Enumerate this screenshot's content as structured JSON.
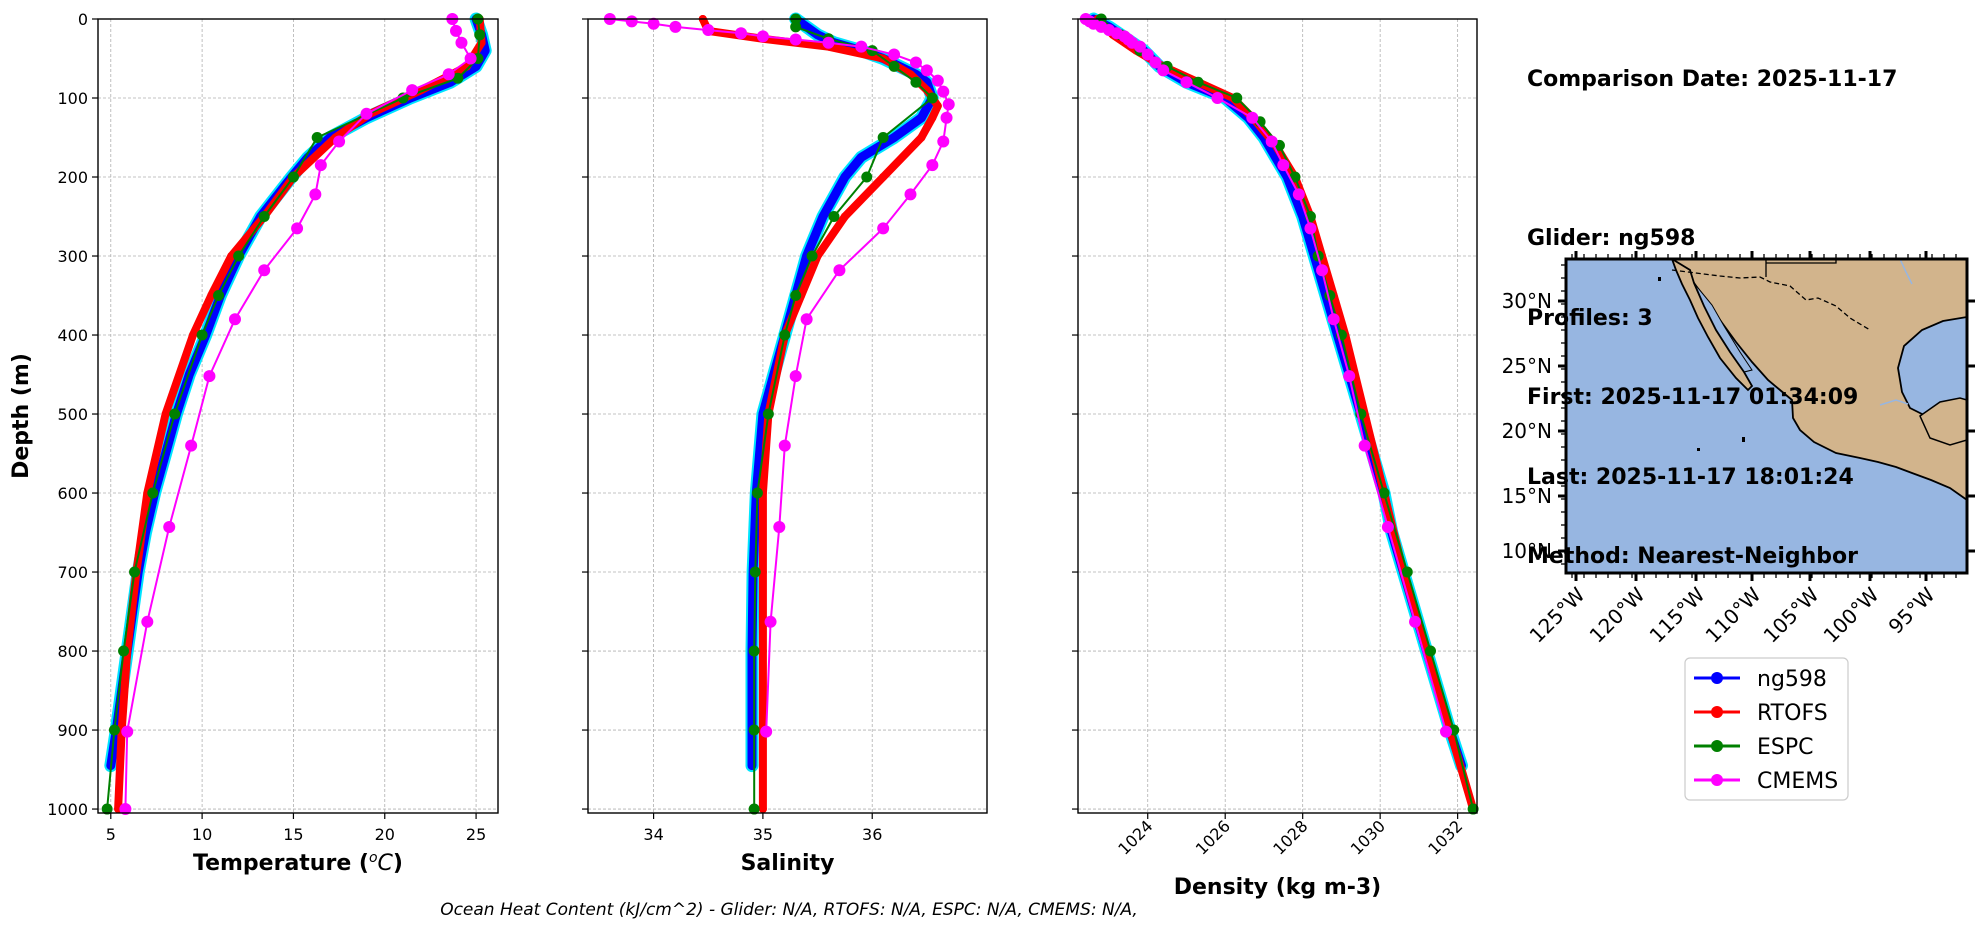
{
  "info": {
    "lines": [
      "Comparison Date: 2025-11-17",
      "",
      "Glider: ng598",
      "Profiles: 3",
      "First: 2025-11-17 01:34:09",
      "Last: 2025-11-17 18:01:24",
      "Method: Nearest-Neighbor"
    ]
  },
  "footer": "Ocean Heat Content (kJ/cm^2) - Glider: N/A,  RTOFS: N/A,  ESPC: N/A,  CMEMS: N/A,",
  "colors": {
    "ng598": "#0000ff",
    "ng598_alt": "#00e5ff",
    "RTOFS": "#ff0000",
    "ESPC": "#008000",
    "CMEMS": "#ff00ff",
    "ocean": "#97b6e1",
    "land": "#d2b48c"
  },
  "map": {
    "lat_labels": [
      "30°N",
      "25°N",
      "20°N",
      "15°N",
      "10°N"
    ],
    "lon_labels": [
      "125°W",
      "120°W",
      "115°W",
      "110°W",
      "105°W",
      "100°W",
      "95°W"
    ]
  },
  "legend": [
    "ng598",
    "RTOFS",
    "ESPC",
    "CMEMS"
  ],
  "chart_data": [
    {
      "type": "line",
      "xlabel": "Temperature (°C)",
      "ylabel": "Depth (m)",
      "xlim": [
        4.3,
        26.2
      ],
      "ylim": [
        1005,
        0
      ],
      "xticks": [
        "5",
        "10",
        "15",
        "20",
        "25"
      ],
      "yticks": [
        "0",
        "100",
        "200",
        "300",
        "400",
        "500",
        "600",
        "700",
        "800",
        "900",
        "1000"
      ],
      "grid": true,
      "series": [
        {
          "name": "ng598",
          "depth": [
            0,
            20,
            40,
            60,
            80,
            100,
            125,
            150,
            175,
            200,
            250,
            300,
            350,
            400,
            450,
            500,
            550,
            600,
            650,
            700,
            750,
            800,
            850,
            900,
            945
          ],
          "values": [
            25.0,
            25.3,
            25.5,
            25.0,
            23.6,
            21.4,
            19.0,
            17.0,
            15.8,
            14.9,
            13.2,
            12.0,
            11.0,
            10.2,
            9.3,
            8.6,
            8.0,
            7.4,
            6.9,
            6.5,
            6.2,
            5.9,
            5.6,
            5.3,
            5.0
          ]
        },
        {
          "name": "RTOFS",
          "depth": [
            0,
            30,
            60,
            90,
            120,
            150,
            200,
            250,
            300,
            350,
            400,
            500,
            600,
            700,
            800,
            900,
            1000
          ],
          "values": [
            25.2,
            25.3,
            24.5,
            22.0,
            19.2,
            17.3,
            15.0,
            13.4,
            11.6,
            10.5,
            9.5,
            8.0,
            7.0,
            6.4,
            5.9,
            5.6,
            5.4
          ]
        },
        {
          "name": "ESPC",
          "depth": [
            0,
            20,
            50,
            75,
            100,
            150,
            200,
            250,
            300,
            350,
            400,
            500,
            600,
            700,
            800,
            900,
            1000
          ],
          "values": [
            25.1,
            25.2,
            25.1,
            24.0,
            21.0,
            16.3,
            15.0,
            13.4,
            12.0,
            10.9,
            10.0,
            8.5,
            7.3,
            6.3,
            5.7,
            5.2,
            4.8
          ]
        },
        {
          "name": "CMEMS",
          "depth": [
            0,
            15,
            30,
            50,
            70,
            90,
            120,
            155,
            185,
            222,
            265,
            318,
            380,
            452,
            540,
            643,
            763,
            902,
            1000
          ],
          "values": [
            23.7,
            23.9,
            24.2,
            24.7,
            23.5,
            21.5,
            19.0,
            17.5,
            16.5,
            16.2,
            15.2,
            13.4,
            11.8,
            10.4,
            9.4,
            8.2,
            7.0,
            5.9,
            5.8
          ]
        }
      ]
    },
    {
      "type": "line",
      "xlabel": "Salinity",
      "xlim": [
        33.4,
        37.05
      ],
      "ylim": [
        1005,
        0
      ],
      "xticks": [
        "34",
        "35",
        "36"
      ],
      "grid": true,
      "series": [
        {
          "name": "ng598",
          "depth": [
            0,
            10,
            20,
            30,
            40,
            50,
            60,
            70,
            80,
            100,
            125,
            150,
            175,
            200,
            250,
            300,
            350,
            400,
            450,
            500,
            550,
            600,
            700,
            800,
            900,
            945
          ],
          "values": [
            35.3,
            35.4,
            35.5,
            35.65,
            35.9,
            36.1,
            36.25,
            36.4,
            36.5,
            36.55,
            36.45,
            36.2,
            35.9,
            35.75,
            35.55,
            35.4,
            35.3,
            35.2,
            35.1,
            35.0,
            34.97,
            34.94,
            34.91,
            34.9,
            34.9,
            34.9
          ]
        },
        {
          "name": "RTOFS",
          "depth": [
            0,
            15,
            25,
            35,
            50,
            70,
            90,
            110,
            125,
            150,
            200,
            250,
            300,
            350,
            400,
            500,
            600,
            700,
            800,
            900,
            1000
          ],
          "values": [
            34.45,
            34.5,
            35.0,
            35.6,
            36.1,
            36.35,
            36.5,
            36.6,
            36.55,
            36.45,
            36.1,
            35.75,
            35.5,
            35.35,
            35.2,
            35.05,
            35.0,
            35.0,
            35.0,
            35.0,
            35.0
          ]
        },
        {
          "name": "ESPC",
          "depth": [
            0,
            10,
            25,
            40,
            60,
            80,
            100,
            150,
            200,
            250,
            300,
            350,
            400,
            500,
            600,
            700,
            800,
            900,
            1000
          ],
          "values": [
            35.3,
            35.3,
            35.6,
            36.0,
            36.2,
            36.4,
            36.55,
            36.1,
            35.95,
            35.65,
            35.45,
            35.3,
            35.2,
            35.05,
            34.95,
            34.93,
            34.92,
            34.92,
            34.92
          ]
        },
        {
          "name": "CMEMS",
          "depth": [
            0,
            3,
            6,
            10,
            14,
            18,
            22,
            26,
            30,
            35,
            45,
            55,
            65,
            78,
            92,
            108,
            125,
            155,
            185,
            222,
            265,
            318,
            380,
            452,
            540,
            643,
            763,
            902
          ],
          "values": [
            33.6,
            33.8,
            34.0,
            34.2,
            34.5,
            34.8,
            35.0,
            35.3,
            35.6,
            35.9,
            36.2,
            36.4,
            36.5,
            36.6,
            36.65,
            36.7,
            36.68,
            36.65,
            36.55,
            36.35,
            36.1,
            35.7,
            35.4,
            35.3,
            35.2,
            35.15,
            35.07,
            35.03
          ]
        }
      ]
    },
    {
      "type": "line",
      "xlabel": "Density (kg m-3)",
      "xlim": [
        1022.2,
        1032.5
      ],
      "ylim": [
        1005,
        0
      ],
      "xticks": [
        "1024",
        "1026",
        "1028",
        "1030",
        "1032"
      ],
      "grid": true,
      "series": [
        {
          "name": "ng598",
          "depth": [
            0,
            10,
            20,
            30,
            40,
            60,
            80,
            100,
            125,
            150,
            200,
            250,
            300,
            350,
            400,
            450,
            500,
            550,
            600,
            650,
            700,
            750,
            800,
            850,
            900,
            945
          ],
          "values": [
            1022.6,
            1023.0,
            1023.3,
            1023.6,
            1023.9,
            1024.3,
            1025.0,
            1026.0,
            1026.6,
            1027.0,
            1027.6,
            1028.0,
            1028.3,
            1028.6,
            1028.9,
            1029.2,
            1029.5,
            1029.8,
            1030.1,
            1030.3,
            1030.6,
            1030.9,
            1031.2,
            1031.5,
            1031.8,
            1032.1
          ]
        },
        {
          "name": "RTOFS",
          "depth": [
            0,
            20,
            40,
            60,
            80,
            100,
            130,
            160,
            200,
            250,
            300,
            350,
            400,
            500,
            600,
            700,
            800,
            900,
            1000
          ],
          "values": [
            1022.7,
            1023.1,
            1023.7,
            1024.4,
            1025.3,
            1026.2,
            1026.8,
            1027.3,
            1027.8,
            1028.2,
            1028.5,
            1028.8,
            1029.1,
            1029.6,
            1030.1,
            1030.6,
            1031.2,
            1031.8,
            1032.4
          ]
        },
        {
          "name": "ESPC",
          "depth": [
            0,
            20,
            40,
            60,
            80,
            100,
            130,
            160,
            200,
            250,
            300,
            350,
            400,
            500,
            600,
            700,
            800,
            900,
            1000
          ],
          "values": [
            1022.8,
            1023.3,
            1023.8,
            1024.5,
            1025.3,
            1026.3,
            1026.9,
            1027.4,
            1027.8,
            1028.2,
            1028.4,
            1028.7,
            1029.0,
            1029.5,
            1030.1,
            1030.7,
            1031.3,
            1031.9,
            1032.4
          ]
        },
        {
          "name": "CMEMS",
          "depth": [
            0,
            3,
            6,
            10,
            14,
            18,
            22,
            26,
            30,
            35,
            45,
            55,
            65,
            80,
            100,
            125,
            155,
            185,
            222,
            265,
            318,
            380,
            452,
            540,
            643,
            763,
            902
          ],
          "values": [
            1022.4,
            1022.5,
            1022.6,
            1022.8,
            1023.0,
            1023.2,
            1023.4,
            1023.5,
            1023.6,
            1023.8,
            1024.0,
            1024.2,
            1024.4,
            1025.0,
            1025.8,
            1026.7,
            1027.2,
            1027.5,
            1027.9,
            1028.2,
            1028.5,
            1028.8,
            1029.2,
            1029.6,
            1030.2,
            1030.9,
            1031.7
          ]
        }
      ]
    }
  ]
}
